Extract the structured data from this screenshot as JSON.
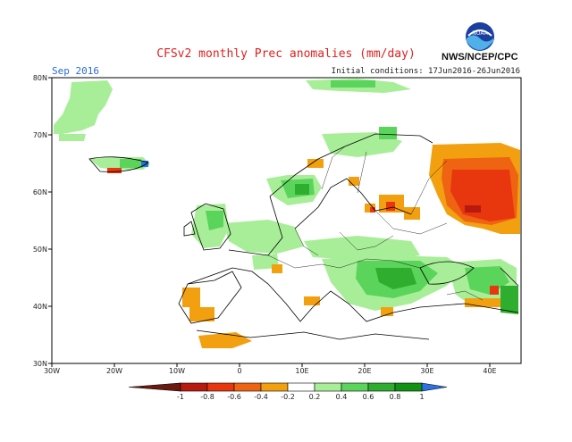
{
  "title": "CFSv2 monthly Prec anomalies (mm/day)",
  "month": "Sep 2016",
  "initial_conditions": "Initial conditions: 17Jun2016-26Jun2016",
  "agency": "NWS/NCEP/CPC",
  "logo_text": "NOAA",
  "map": {
    "lon_range": [
      -30,
      45
    ],
    "lat_range": [
      30,
      80
    ],
    "lon_ticks": [
      "30W",
      "20W",
      "10W",
      "0",
      "10E",
      "20E",
      "30E",
      "40E"
    ],
    "lat_ticks": [
      "30N",
      "40N",
      "50N",
      "60N",
      "70N",
      "80N"
    ]
  },
  "colorbar": {
    "labels": [
      "-1",
      "-0.8",
      "-0.6",
      "-0.4",
      "-0.2",
      "0.2",
      "0.4",
      "0.6",
      "0.8",
      "1"
    ],
    "colors": [
      "#6b1a10",
      "#b81a10",
      "#e8360e",
      "#ee6412",
      "#f2a00f",
      "#ffffff",
      "#a8ee98",
      "#5ad45a",
      "#2ead2e",
      "#129212",
      "#2c72e0"
    ]
  }
}
